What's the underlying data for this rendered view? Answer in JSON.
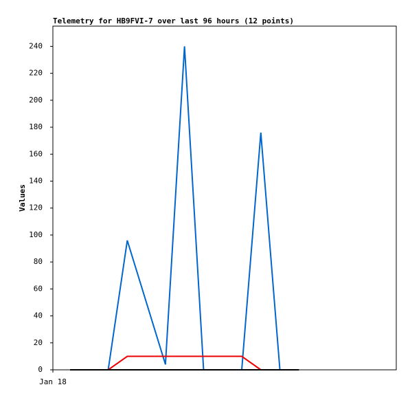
{
  "chart_data": {
    "type": "line",
    "title": "Telemetry for HB9FVI-7 over last 96 hours (12 points)",
    "y_label": "Values",
    "xlim": [
      0.1,
      18.1
    ],
    "xticks": [
      {
        "value": 0.1,
        "label": "Jan 18"
      }
    ],
    "ylim": [
      0,
      255
    ],
    "yticks": [
      0,
      20,
      40,
      60,
      80,
      100,
      120,
      140,
      160,
      180,
      200,
      220,
      240
    ],
    "series": [
      {
        "color": "#0066cc",
        "x": [
          1,
          3,
          4,
          6,
          7,
          8,
          10,
          11,
          12,
          13
        ],
        "values": [
          0,
          0,
          96,
          4,
          240,
          0,
          0,
          176,
          0,
          0
        ]
      },
      {
        "color": "#ee0000",
        "x": [
          1,
          3,
          4,
          10,
          11,
          13
        ],
        "values": [
          0,
          0,
          10,
          10,
          0,
          0
        ]
      },
      {
        "color": "#000000",
        "x": [
          1,
          13
        ],
        "values": [
          0,
          0
        ]
      }
    ]
  }
}
